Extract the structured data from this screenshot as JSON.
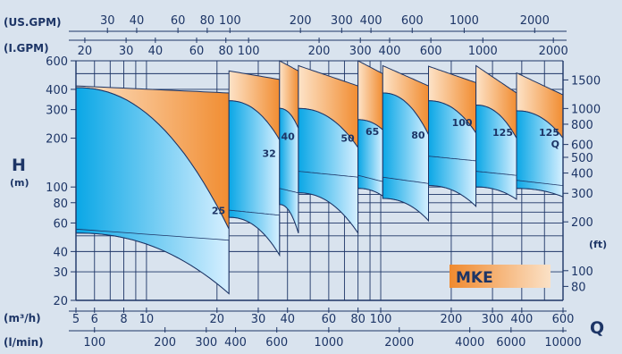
{
  "colors": {
    "background": "#d9e3ee",
    "grid": "#1d3566",
    "blue_light": "#d6efff",
    "blue_dark": "#0aa7e6",
    "orange_light": "#fde3c8",
    "orange_dark": "#f18d32",
    "badge_fill_light": "#fbe1c6",
    "badge_fill_dark": "#f08a2f",
    "badge_text": "#1d3566"
  },
  "chart_data": {
    "type": "area",
    "title": "MKE",
    "y_axis_left": {
      "symbol": "H",
      "unit": "(m)",
      "scale": "log",
      "range": [
        20,
        600
      ],
      "ticks": [
        "20",
        "30",
        "40",
        "60",
        "80",
        "100",
        "200",
        "300",
        "400",
        "600"
      ],
      "tick_values": [
        20,
        30,
        40,
        60,
        80,
        100,
        200,
        300,
        400,
        600
      ]
    },
    "y_axis_right": {
      "unit": "(ft)",
      "scale": "log",
      "ticks": [
        "80",
        "100",
        "200",
        "300",
        "400",
        "500",
        "600",
        "800",
        "1000",
        "1500"
      ],
      "tick_values": [
        80,
        100,
        200,
        300,
        400,
        500,
        600,
        800,
        1000,
        1500
      ]
    },
    "x_axis_primary": {
      "symbol": "Q",
      "unit": "(m³/h)",
      "scale": "log",
      "range": [
        5,
        600
      ],
      "ticks": [
        "5",
        "6",
        "8",
        "10",
        "20",
        "30",
        "40",
        "60",
        "80",
        "100",
        "200",
        "300",
        "400",
        "600"
      ],
      "tick_values": [
        5,
        6,
        8,
        10,
        20,
        30,
        40,
        60,
        80,
        100,
        200,
        300,
        400,
        600
      ]
    },
    "x_axis_lmin": {
      "unit": "(l/min)",
      "ticks": [
        "100",
        "200",
        "300",
        "400",
        "600",
        "1000",
        "2000",
        "4000",
        "6000",
        "10000"
      ]
    },
    "x_axis_usgpm": {
      "unit": "(US.GPM)",
      "ticks": [
        "30",
        "40",
        "60",
        "80",
        "100",
        "200",
        "300",
        "400",
        "600",
        "1000",
        "2000"
      ]
    },
    "x_axis_igpm": {
      "unit": "(I.GPM)",
      "ticks": [
        "20",
        "30",
        "40",
        "60",
        "80",
        "100",
        "200",
        "300",
        "400",
        "600",
        "1000",
        "2000"
      ]
    },
    "series": [
      {
        "name": "25",
        "q_range": [
          5,
          22.5
        ],
        "h_top_max": [
          420,
          380
        ],
        "h_top_min": [
          410,
          55
        ],
        "h_bottom_max": [
          55,
          47
        ],
        "h_bottom_min": [
          52,
          22
        ]
      },
      {
        "name": "32",
        "q_range": [
          22.5,
          37
        ],
        "h_top_max": [
          520,
          460
        ],
        "h_top_min": [
          340,
          195
        ],
        "h_bottom_max": [
          72,
          67
        ],
        "h_bottom_min": [
          65,
          38
        ]
      },
      {
        "name": "40",
        "q_range": [
          37,
          44.5
        ],
        "h_top_max": [
          600,
          520
        ],
        "h_top_min": [
          305,
          230
        ],
        "h_bottom_max": [
          98,
          92
        ],
        "h_bottom_min": [
          78,
          52
        ]
      },
      {
        "name": "50",
        "q_range": [
          44.5,
          80
        ],
        "h_top_max": [
          560,
          420
        ],
        "h_top_min": [
          305,
          175
        ],
        "h_bottom_max": [
          125,
          115
        ],
        "h_bottom_min": [
          92,
          52
        ]
      },
      {
        "name": "65",
        "q_range": [
          80,
          102
        ],
        "h_top_max": [
          600,
          500
        ],
        "h_top_min": [
          260,
          225
        ],
        "h_bottom_max": [
          118,
          108
        ],
        "h_bottom_min": [
          98,
          88
        ]
      },
      {
        "name": "80",
        "q_range": [
          102,
          160
        ],
        "h_top_max": [
          560,
          420
        ],
        "h_top_min": [
          380,
          210
        ],
        "h_bottom_max": [
          115,
          105
        ],
        "h_bottom_min": [
          85,
          62
        ]
      },
      {
        "name": "100",
        "q_range": [
          160,
          255
        ],
        "h_top_max": [
          555,
          440
        ],
        "h_top_min": [
          340,
          215
        ],
        "h_bottom_max": [
          155,
          145
        ],
        "h_bottom_min": [
          102,
          76
        ]
      },
      {
        "name": "125",
        "q_range": [
          255,
          380
        ],
        "h_top_max": [
          560,
          380
        ],
        "h_top_min": [
          320,
          200
        ],
        "h_bottom_max": [
          125,
          118
        ],
        "h_bottom_min": [
          100,
          84
        ]
      },
      {
        "name": "125 Q",
        "q_range": [
          380,
          600
        ],
        "h_top_max": [
          505,
          370
        ],
        "h_top_min": [
          295,
          200
        ],
        "h_bottom_max": [
          110,
          102
        ],
        "h_bottom_min": [
          98,
          87
        ]
      }
    ]
  }
}
